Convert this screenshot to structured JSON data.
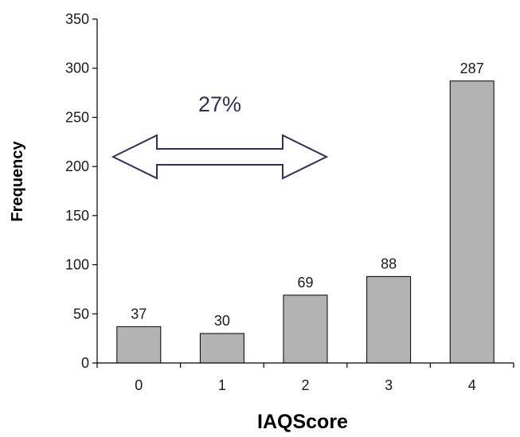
{
  "chart_data": {
    "type": "bar",
    "categories": [
      "0",
      "1",
      "2",
      "3",
      "4"
    ],
    "values": [
      37,
      30,
      69,
      88,
      287
    ],
    "data_labels": [
      "37",
      "30",
      "69",
      "88",
      "287"
    ],
    "title": "",
    "xlabel": "IAQScore",
    "ylabel": "Frequency",
    "ylim": [
      0,
      350
    ],
    "yticks": [
      "0",
      "50",
      "100",
      "150",
      "200",
      "250",
      "300",
      "350"
    ],
    "grid": false,
    "legend": "none",
    "bar_color": "#b3b3b3",
    "annotation": {
      "text": "27%",
      "color": "#2b2f66",
      "arrow": "double-headed",
      "arrow_span_categories": [
        "0",
        "2"
      ]
    }
  }
}
